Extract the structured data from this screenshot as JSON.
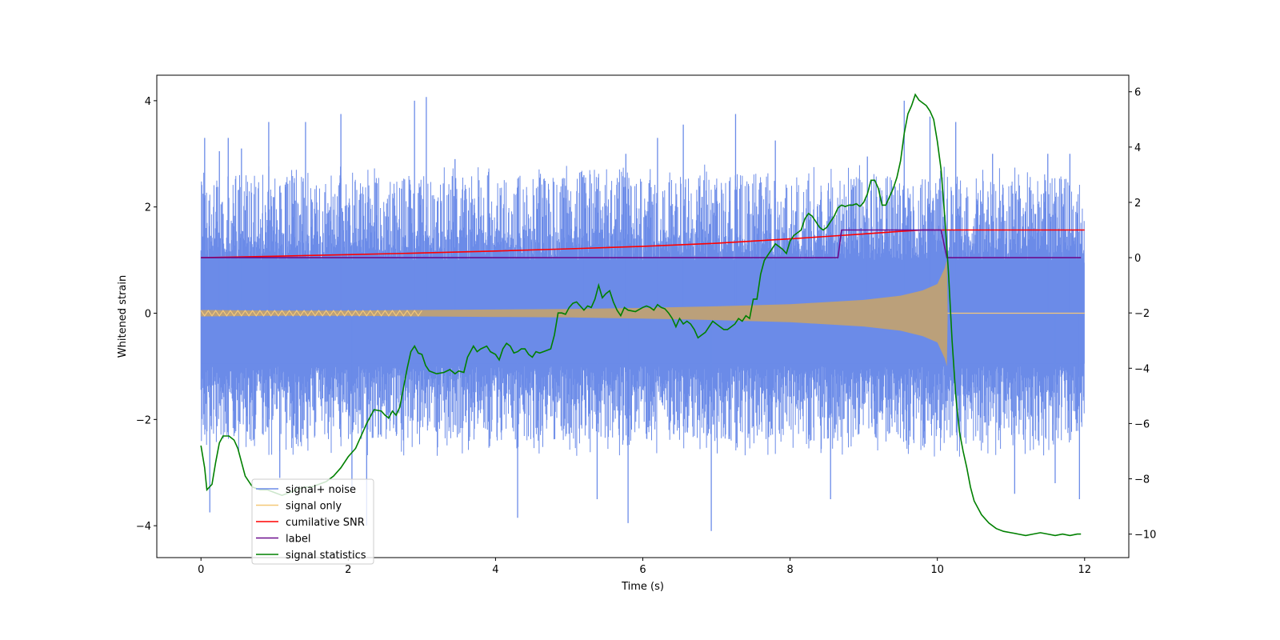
{
  "chart_data": {
    "type": "line",
    "title": "",
    "xlabel": "Time (s)",
    "ylabel": "Whitened strain",
    "y2label": "",
    "xlim": [
      -0.6,
      12.6
    ],
    "ylim": [
      -4.6,
      4.48
    ],
    "y2lim": [
      -10.85,
      6.6
    ],
    "xticks": [
      0,
      2,
      4,
      6,
      8,
      10,
      12
    ],
    "yticks": [
      -4,
      -2,
      0,
      2,
      4
    ],
    "y2ticks": [
      -10,
      -8,
      -6,
      -4,
      -2,
      0,
      2,
      4,
      6
    ],
    "grid": false,
    "legend_position": "lower-left",
    "series": [
      {
        "name": "signal+ noise",
        "axis": "left",
        "color": "#6b8be8",
        "style": "noise",
        "description_stats": {
          "duration": 12,
          "core_band": [
            -1.0,
            1.0
          ],
          "typical_peaks": [
            -2.6,
            2.8
          ],
          "extreme_peaks": [
            -4.1,
            4.07
          ]
        },
        "spikes": [
          [
            0.03,
            2.25
          ],
          [
            0.05,
            3.3
          ],
          [
            0.12,
            -3.75
          ],
          [
            0.25,
            3.05
          ],
          [
            0.37,
            3.3
          ],
          [
            0.55,
            3.1
          ],
          [
            0.92,
            3.6
          ],
          [
            1.07,
            -3.1
          ],
          [
            1.42,
            3.6
          ],
          [
            1.9,
            3.75
          ],
          [
            2.05,
            -3.3
          ],
          [
            2.25,
            -4.0
          ],
          [
            2.9,
            4.0
          ],
          [
            3.06,
            4.07
          ],
          [
            3.45,
            2.9
          ],
          [
            4.3,
            -3.85
          ],
          [
            4.6,
            2.55
          ],
          [
            5.2,
            2.6
          ],
          [
            5.38,
            -3.5
          ],
          [
            5.77,
            3.0
          ],
          [
            5.8,
            -3.95
          ],
          [
            6.2,
            3.3
          ],
          [
            6.55,
            3.55
          ],
          [
            6.93,
            -4.1
          ],
          [
            7.26,
            3.75
          ],
          [
            7.8,
            3.25
          ],
          [
            8.55,
            -3.5
          ],
          [
            9.05,
            2.95
          ],
          [
            9.55,
            4.0
          ],
          [
            9.9,
            3.7
          ],
          [
            10.25,
            3.6
          ],
          [
            10.75,
            3.0
          ],
          [
            11.05,
            -3.4
          ],
          [
            11.5,
            3.0
          ],
          [
            11.6,
            -3.2
          ],
          [
            11.8,
            3.0
          ],
          [
            11.93,
            -3.5
          ]
        ]
      },
      {
        "name": "signal only",
        "axis": "left",
        "color": "#f5c878",
        "style": "chirp",
        "envelope": [
          [
            0,
            0.06
          ],
          [
            1,
            0.05
          ],
          [
            2,
            0.05
          ],
          [
            3,
            0.06
          ],
          [
            4,
            0.07
          ],
          [
            5,
            0.08
          ],
          [
            6,
            0.1
          ],
          [
            7,
            0.13
          ],
          [
            8,
            0.17
          ],
          [
            9,
            0.25
          ],
          [
            9.5,
            0.33
          ],
          [
            9.8,
            0.43
          ],
          [
            10.0,
            0.55
          ],
          [
            10.1,
            0.85
          ],
          [
            10.13,
            1.0
          ],
          [
            10.14,
            0
          ]
        ]
      },
      {
        "name": "cumilative SNR",
        "axis": "right",
        "color": "#ff0000",
        "points": [
          [
            0,
            0
          ],
          [
            1,
            0.05
          ],
          [
            2,
            0.11
          ],
          [
            3,
            0.17
          ],
          [
            4,
            0.24
          ],
          [
            5,
            0.32
          ],
          [
            6,
            0.41
          ],
          [
            7,
            0.52
          ],
          [
            7.5,
            0.6
          ],
          [
            8,
            0.68
          ],
          [
            8.5,
            0.77
          ],
          [
            9,
            0.86
          ],
          [
            9.5,
            0.95
          ],
          [
            9.8,
            1.0
          ],
          [
            10.1,
            1.0
          ],
          [
            12,
            1.0
          ]
        ]
      },
      {
        "name": "label",
        "axis": "right",
        "color": "#6a0c8c",
        "points": [
          [
            0,
            0
          ],
          [
            8.65,
            0
          ],
          [
            8.7,
            1
          ],
          [
            10.05,
            1
          ],
          [
            10.13,
            0
          ],
          [
            11.95,
            0
          ]
        ]
      },
      {
        "name": "signal statistics",
        "axis": "right",
        "color": "#008000",
        "points": [
          [
            0,
            -6.8
          ],
          [
            0.05,
            -7.6
          ],
          [
            0.08,
            -8.4
          ],
          [
            0.15,
            -8.2
          ],
          [
            0.2,
            -7.4
          ],
          [
            0.25,
            -6.7
          ],
          [
            0.3,
            -6.45
          ],
          [
            0.38,
            -6.45
          ],
          [
            0.45,
            -6.6
          ],
          [
            0.5,
            -6.9
          ],
          [
            0.55,
            -7.4
          ],
          [
            0.6,
            -7.9
          ],
          [
            0.7,
            -8.3
          ],
          [
            0.8,
            -8.4
          ],
          [
            0.9,
            -8.4
          ],
          [
            1.0,
            -8.5
          ],
          [
            1.1,
            -8.6
          ],
          [
            1.2,
            -8.5
          ],
          [
            1.3,
            -8.4
          ],
          [
            1.4,
            -8.3
          ],
          [
            1.5,
            -8.3
          ],
          [
            1.6,
            -8.2
          ],
          [
            1.7,
            -8.1
          ],
          [
            1.8,
            -7.9
          ],
          [
            1.9,
            -7.6
          ],
          [
            2.0,
            -7.2
          ],
          [
            2.1,
            -6.9
          ],
          [
            2.15,
            -6.6
          ],
          [
            2.2,
            -6.3
          ],
          [
            2.25,
            -6.0
          ],
          [
            2.3,
            -5.75
          ],
          [
            2.35,
            -5.5
          ],
          [
            2.45,
            -5.55
          ],
          [
            2.5,
            -5.7
          ],
          [
            2.55,
            -5.8
          ],
          [
            2.6,
            -5.55
          ],
          [
            2.65,
            -5.7
          ],
          [
            2.7,
            -5.4
          ],
          [
            2.75,
            -4.7
          ],
          [
            2.8,
            -4.0
          ],
          [
            2.85,
            -3.4
          ],
          [
            2.9,
            -3.2
          ],
          [
            2.95,
            -3.45
          ],
          [
            3.0,
            -3.5
          ],
          [
            3.05,
            -3.9
          ],
          [
            3.1,
            -4.1
          ],
          [
            3.2,
            -4.2
          ],
          [
            3.3,
            -4.15
          ],
          [
            3.38,
            -4.05
          ],
          [
            3.45,
            -4.2
          ],
          [
            3.5,
            -4.1
          ],
          [
            3.57,
            -4.15
          ],
          [
            3.62,
            -3.6
          ],
          [
            3.7,
            -3.2
          ],
          [
            3.75,
            -3.4
          ],
          [
            3.8,
            -3.3
          ],
          [
            3.88,
            -3.2
          ],
          [
            3.93,
            -3.4
          ],
          [
            4.0,
            -3.5
          ],
          [
            4.05,
            -3.7
          ],
          [
            4.1,
            -3.3
          ],
          [
            4.15,
            -3.1
          ],
          [
            4.2,
            -3.2
          ],
          [
            4.25,
            -3.45
          ],
          [
            4.3,
            -3.4
          ],
          [
            4.35,
            -3.3
          ],
          [
            4.4,
            -3.3
          ],
          [
            4.45,
            -3.5
          ],
          [
            4.5,
            -3.6
          ],
          [
            4.55,
            -3.4
          ],
          [
            4.6,
            -3.45
          ],
          [
            4.65,
            -3.4
          ],
          [
            4.75,
            -3.3
          ],
          [
            4.8,
            -2.8
          ],
          [
            4.85,
            -2.0
          ],
          [
            4.9,
            -2.0
          ],
          [
            4.95,
            -2.05
          ],
          [
            5.0,
            -1.8
          ],
          [
            5.05,
            -1.65
          ],
          [
            5.1,
            -1.6
          ],
          [
            5.15,
            -1.75
          ],
          [
            5.2,
            -1.9
          ],
          [
            5.25,
            -1.75
          ],
          [
            5.3,
            -1.8
          ],
          [
            5.35,
            -1.5
          ],
          [
            5.4,
            -1.0
          ],
          [
            5.45,
            -1.45
          ],
          [
            5.5,
            -1.3
          ],
          [
            5.55,
            -1.2
          ],
          [
            5.6,
            -1.6
          ],
          [
            5.65,
            -1.9
          ],
          [
            5.7,
            -2.1
          ],
          [
            5.75,
            -1.8
          ],
          [
            5.8,
            -1.9
          ],
          [
            5.9,
            -1.95
          ],
          [
            6.0,
            -1.8
          ],
          [
            6.05,
            -1.75
          ],
          [
            6.1,
            -1.8
          ],
          [
            6.15,
            -1.9
          ],
          [
            6.2,
            -1.7
          ],
          [
            6.25,
            -1.8
          ],
          [
            6.3,
            -1.85
          ],
          [
            6.35,
            -2.0
          ],
          [
            6.4,
            -2.2
          ],
          [
            6.45,
            -2.5
          ],
          [
            6.5,
            -2.2
          ],
          [
            6.55,
            -2.4
          ],
          [
            6.6,
            -2.3
          ],
          [
            6.65,
            -2.4
          ],
          [
            6.7,
            -2.6
          ],
          [
            6.75,
            -2.9
          ],
          [
            6.8,
            -2.8
          ],
          [
            6.85,
            -2.7
          ],
          [
            6.9,
            -2.5
          ],
          [
            6.95,
            -2.3
          ],
          [
            7.0,
            -2.4
          ],
          [
            7.05,
            -2.5
          ],
          [
            7.1,
            -2.6
          ],
          [
            7.15,
            -2.6
          ],
          [
            7.2,
            -2.5
          ],
          [
            7.25,
            -2.4
          ],
          [
            7.3,
            -2.2
          ],
          [
            7.35,
            -2.3
          ],
          [
            7.4,
            -2.1
          ],
          [
            7.45,
            -2.2
          ],
          [
            7.5,
            -1.5
          ],
          [
            7.55,
            -1.5
          ],
          [
            7.6,
            -0.6
          ],
          [
            7.65,
            -0.1
          ],
          [
            7.7,
            0.1
          ],
          [
            7.75,
            0.3
          ],
          [
            7.8,
            0.5
          ],
          [
            7.85,
            0.4
          ],
          [
            7.9,
            0.3
          ],
          [
            7.95,
            0.15
          ],
          [
            8.0,
            0.6
          ],
          [
            8.05,
            0.8
          ],
          [
            8.1,
            0.9
          ],
          [
            8.15,
            1.0
          ],
          [
            8.2,
            1.4
          ],
          [
            8.25,
            1.6
          ],
          [
            8.3,
            1.5
          ],
          [
            8.35,
            1.3
          ],
          [
            8.4,
            1.1
          ],
          [
            8.45,
            1.0
          ],
          [
            8.5,
            1.1
          ],
          [
            8.55,
            1.3
          ],
          [
            8.6,
            1.5
          ],
          [
            8.65,
            1.8
          ],
          [
            8.7,
            1.9
          ],
          [
            8.75,
            1.85
          ],
          [
            8.8,
            1.9
          ],
          [
            8.85,
            1.9
          ],
          [
            8.9,
            1.95
          ],
          [
            8.95,
            1.85
          ],
          [
            9.0,
            2.0
          ],
          [
            9.05,
            2.3
          ],
          [
            9.1,
            2.8
          ],
          [
            9.15,
            2.8
          ],
          [
            9.2,
            2.5
          ],
          [
            9.25,
            1.9
          ],
          [
            9.3,
            1.9
          ],
          [
            9.35,
            2.2
          ],
          [
            9.4,
            2.5
          ],
          [
            9.45,
            2.9
          ],
          [
            9.5,
            3.5
          ],
          [
            9.55,
            4.5
          ],
          [
            9.6,
            5.2
          ],
          [
            9.65,
            5.5
          ],
          [
            9.7,
            5.9
          ],
          [
            9.75,
            5.7
          ],
          [
            9.8,
            5.6
          ],
          [
            9.85,
            5.5
          ],
          [
            9.9,
            5.3
          ],
          [
            9.95,
            5.0
          ],
          [
            10.0,
            4.2
          ],
          [
            10.05,
            3.2
          ],
          [
            10.1,
            1.5
          ],
          [
            10.15,
            -0.5
          ],
          [
            10.2,
            -3.0
          ],
          [
            10.25,
            -5.0
          ],
          [
            10.3,
            -6.3
          ],
          [
            10.35,
            -7.0
          ],
          [
            10.4,
            -7.6
          ],
          [
            10.45,
            -8.3
          ],
          [
            10.5,
            -8.8
          ],
          [
            10.6,
            -9.3
          ],
          [
            10.7,
            -9.6
          ],
          [
            10.8,
            -9.8
          ],
          [
            10.9,
            -9.9
          ],
          [
            11.0,
            -9.95
          ],
          [
            11.1,
            -10.0
          ],
          [
            11.2,
            -10.05
          ],
          [
            11.3,
            -10.0
          ],
          [
            11.4,
            -9.95
          ],
          [
            11.5,
            -10.0
          ],
          [
            11.6,
            -10.05
          ],
          [
            11.7,
            -10.0
          ],
          [
            11.8,
            -10.05
          ],
          [
            11.9,
            -10.0
          ],
          [
            11.95,
            -10.0
          ]
        ]
      }
    ]
  }
}
